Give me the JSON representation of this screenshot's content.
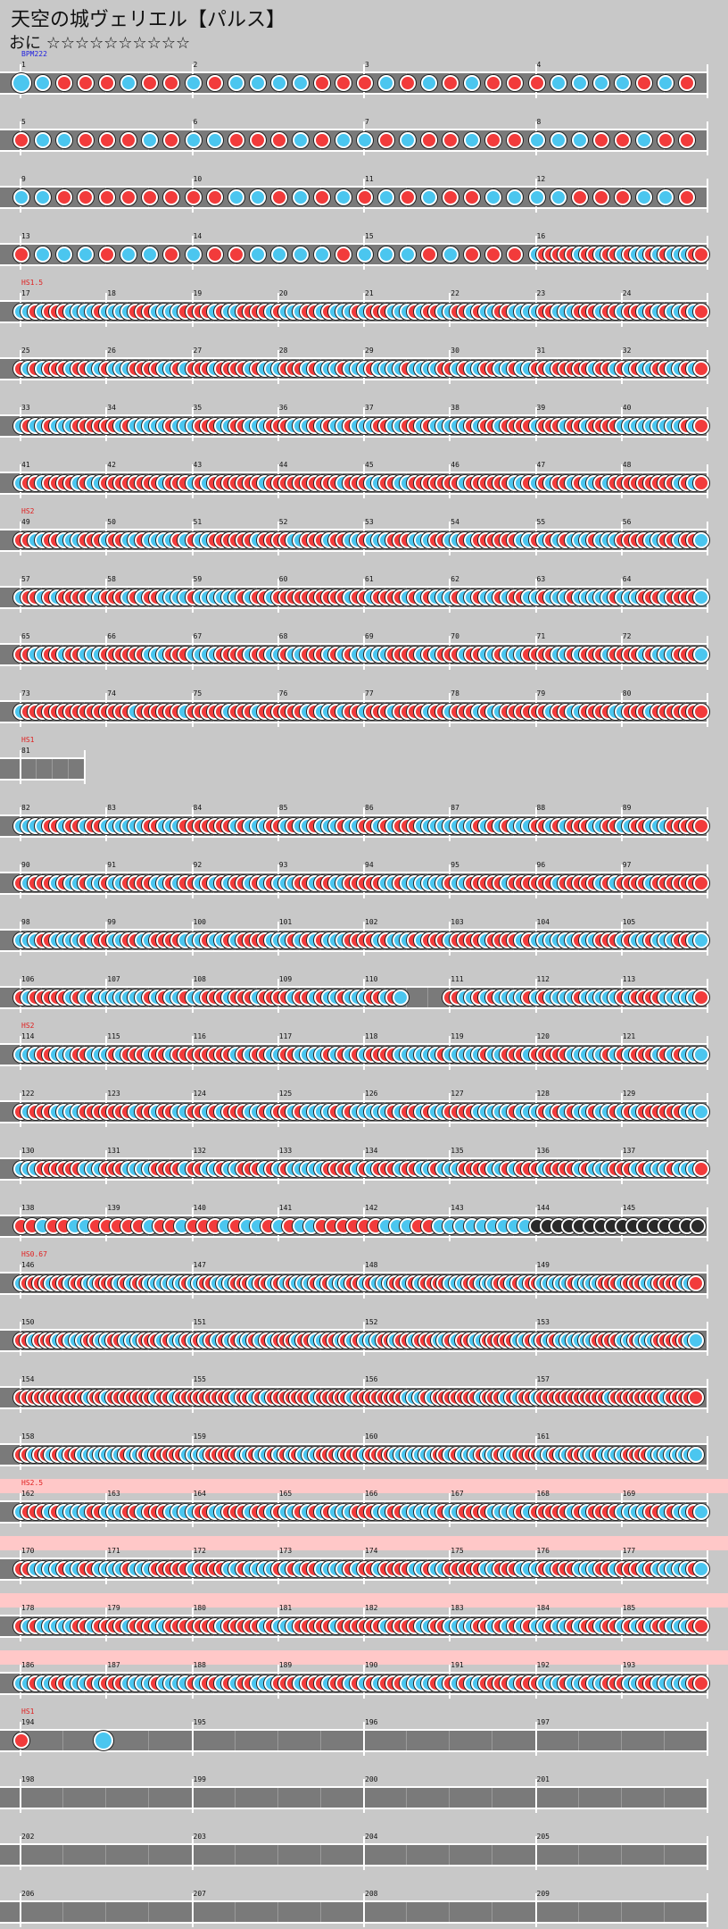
{
  "title": "天空の城ヴェリエル【パルス】",
  "difficulty_text": "おに ☆☆☆☆☆☆☆☆☆☆",
  "colors": {
    "don": "#f23b3b",
    "ka": "#4bc6ef",
    "roll": "#2a2a2a",
    "lane": "#7a7a7a",
    "gogo": "#ffc8c8"
  },
  "rows": [
    {
      "measures": [
        1,
        2,
        3,
        4
      ],
      "event": "BPM222",
      "event_color": "#2020e0",
      "pattern": "mix_sparse",
      "big": true
    },
    {
      "measures": [
        5,
        6,
        7,
        8
      ],
      "pattern": "mix_sparse"
    },
    {
      "measures": [
        9,
        10,
        11,
        12
      ],
      "pattern": "mix_sparse"
    },
    {
      "measures": [
        13,
        14,
        15,
        16
      ],
      "pattern": "mix_sparse_dense_end"
    },
    {
      "measures": [
        17,
        18,
        19,
        20,
        21,
        22,
        23,
        24
      ],
      "event": "HS1.5",
      "event_color": "#e02020",
      "pattern": "dense"
    },
    {
      "measures": [
        25,
        26,
        27,
        28,
        29,
        30,
        31,
        32
      ],
      "pattern": "dense"
    },
    {
      "measures": [
        33,
        34,
        35,
        36,
        37,
        38,
        39,
        40
      ],
      "pattern": "dense"
    },
    {
      "measures": [
        41,
        42,
        43,
        44,
        45,
        46,
        47,
        48
      ],
      "pattern": "dense_red"
    },
    {
      "measures": [
        49,
        50,
        51,
        52,
        53,
        54,
        55,
        56
      ],
      "event": "HS2",
      "event_color": "#e02020",
      "pattern": "dense"
    },
    {
      "measures": [
        57,
        58,
        59,
        60,
        61,
        62,
        63,
        64
      ],
      "pattern": "dense"
    },
    {
      "measures": [
        65,
        66,
        67,
        68,
        69,
        70,
        71,
        72
      ],
      "pattern": "dense"
    },
    {
      "measures": [
        73,
        74,
        75,
        76,
        77,
        78,
        79,
        80
      ],
      "pattern": "dense_red"
    },
    {
      "measures": [
        81
      ],
      "event": "HS1",
      "event_color": "#e02020",
      "pattern": "empty",
      "short": true
    },
    {
      "measures": [
        82,
        83,
        84,
        85,
        86,
        87,
        88,
        89
      ],
      "pattern": "dense"
    },
    {
      "measures": [
        90,
        91,
        92,
        93,
        94,
        95,
        96,
        97
      ],
      "pattern": "dense"
    },
    {
      "measures": [
        98,
        99,
        100,
        101,
        102,
        103,
        104,
        105
      ],
      "pattern": "dense"
    },
    {
      "measures": [
        106,
        107,
        108,
        109,
        110,
        111,
        112,
        113
      ],
      "pattern": "dense_gap"
    },
    {
      "measures": [
        114,
        115,
        116,
        117,
        118,
        119,
        120,
        121
      ],
      "event": "HS2",
      "event_color": "#e02020",
      "pattern": "dense"
    },
    {
      "measures": [
        122,
        123,
        124,
        125,
        126,
        127,
        128,
        129
      ],
      "pattern": "dense"
    },
    {
      "measures": [
        130,
        131,
        132,
        133,
        134,
        135,
        136,
        137
      ],
      "pattern": "dense"
    },
    {
      "measures": [
        138,
        139,
        140,
        141,
        142,
        143,
        144,
        145
      ],
      "pattern": "mix_roll"
    },
    {
      "measures": [
        146,
        147,
        148,
        149
      ],
      "event": "HS0.67",
      "event_color": "#e02020",
      "pattern": "mix_dense4"
    },
    {
      "measures": [
        150,
        151,
        152,
        153
      ],
      "pattern": "mix_dense4"
    },
    {
      "measures": [
        154,
        155,
        156,
        157
      ],
      "pattern": "mix_dense4_red"
    },
    {
      "measures": [
        158,
        159,
        160,
        161
      ],
      "pattern": "mix_dense4"
    },
    {
      "measures": [
        162,
        163,
        164,
        165,
        166,
        167,
        168,
        169
      ],
      "event": "HS2.5",
      "event_color": "#e02020",
      "pattern": "dense",
      "gogo": true
    },
    {
      "measures": [
        170,
        171,
        172,
        173,
        174,
        175,
        176,
        177
      ],
      "pattern": "dense",
      "gogo": true
    },
    {
      "measures": [
        178,
        179,
        180,
        181,
        182,
        183,
        184,
        185
      ],
      "pattern": "dense",
      "gogo": true
    },
    {
      "measures": [
        186,
        187,
        188,
        189,
        190,
        191,
        192,
        193
      ],
      "pattern": "dense",
      "gogo": true
    },
    {
      "measures": [
        194,
        195,
        196,
        197
      ],
      "event": "HS1",
      "event_color": "#e02020",
      "pattern": "ending"
    },
    {
      "measures": [
        198,
        199,
        200,
        201
      ],
      "pattern": "empty"
    },
    {
      "measures": [
        202,
        203,
        204,
        205
      ],
      "pattern": "empty"
    },
    {
      "measures": [
        206,
        207,
        208,
        209
      ],
      "pattern": "empty"
    }
  ]
}
